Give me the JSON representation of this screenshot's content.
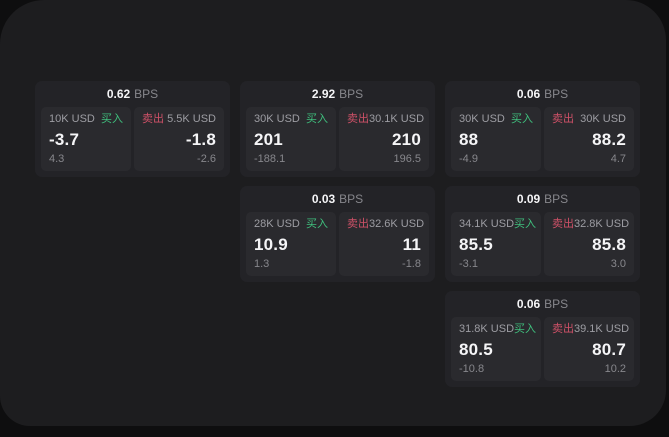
{
  "colors": {
    "backdrop": "#0e0e0f",
    "panel": "#1d1d1f",
    "card": "#232327",
    "subpanel": "#2a2a2e",
    "buy_green": "#3fbf7d",
    "sell_red": "#cf5168",
    "text_primary": "#f5f5f7",
    "text_secondary": "#9d9da3",
    "text_muted": "#87878c"
  },
  "cards": [
    {
      "grid": {
        "col": 1,
        "row": 1
      },
      "bps_value": "0.62",
      "bps_unit": "BPS",
      "buy": {
        "amount": "10K USD",
        "label": "买入",
        "price": "-3.7",
        "delta": "4.3"
      },
      "sell": {
        "label": "卖出",
        "amount": "5.5K USD",
        "price": "-1.8",
        "delta": "-2.6"
      }
    },
    {
      "grid": {
        "col": 2,
        "row": 1
      },
      "bps_value": "2.92",
      "bps_unit": "BPS",
      "buy": {
        "amount": "30K USD",
        "label": "买入",
        "price": "201",
        "delta": "-188.1"
      },
      "sell": {
        "label": "卖出",
        "amount": "30.1K USD",
        "price": "210",
        "delta": "196.5"
      }
    },
    {
      "grid": {
        "col": 3,
        "row": 1
      },
      "bps_value": "0.06",
      "bps_unit": "BPS",
      "buy": {
        "amount": "30K USD",
        "label": "买入",
        "price": "88",
        "delta": "-4.9"
      },
      "sell": {
        "label": "卖出",
        "amount": "30K USD",
        "price": "88.2",
        "delta": "4.7"
      }
    },
    {
      "grid": {
        "col": 2,
        "row": 2
      },
      "bps_value": "0.03",
      "bps_unit": "BPS",
      "buy": {
        "amount": "28K USD",
        "label": "买入",
        "price": "10.9",
        "delta": "1.3"
      },
      "sell": {
        "label": "卖出",
        "amount": "32.6K USD",
        "price": "11",
        "delta": "-1.8"
      }
    },
    {
      "grid": {
        "col": 3,
        "row": 2
      },
      "bps_value": "0.09",
      "bps_unit": "BPS",
      "buy": {
        "amount": "34.1K USD",
        "label": "买入",
        "price": "85.5",
        "delta": "-3.1"
      },
      "sell": {
        "label": "卖出",
        "amount": "32.8K USD",
        "price": "85.8",
        "delta": "3.0"
      }
    },
    {
      "grid": {
        "col": 3,
        "row": 3
      },
      "bps_value": "0.06",
      "bps_unit": "BPS",
      "buy": {
        "amount": "31.8K USD",
        "label": "买入",
        "price": "80.5",
        "delta": "-10.8"
      },
      "sell": {
        "label": "卖出",
        "amount": "39.1K USD",
        "price": "80.7",
        "delta": "10.2"
      }
    }
  ]
}
